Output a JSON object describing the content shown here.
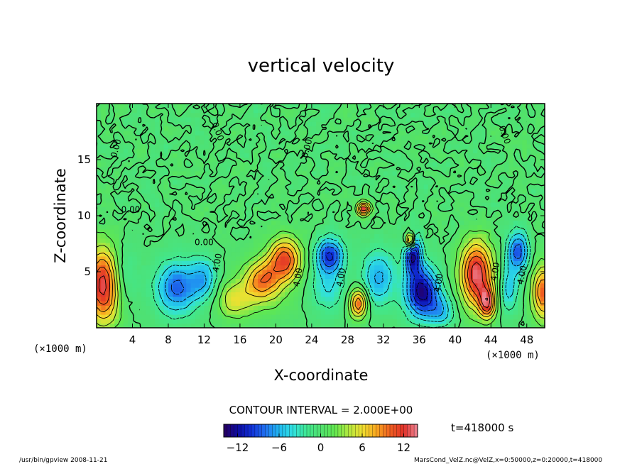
{
  "chart_data": {
    "type": "heatmap",
    "title": "vertical velocity",
    "xlabel": "X-coordinate",
    "ylabel": "Z-coordinate",
    "x_unit": "(×1000 m)",
    "y_unit": "(×1000 m)",
    "xlim": [
      0,
      50
    ],
    "ylim": [
      0,
      20
    ],
    "x_ticks": [
      4,
      8,
      12,
      16,
      20,
      24,
      28,
      32,
      36,
      40,
      44,
      48
    ],
    "y_ticks": [
      5,
      10,
      15
    ],
    "contour_interval_text": "CONTOUR INTERVAL = 2.000E+00",
    "contour_labels": [
      {
        "text": "0.00",
        "x": 2.2,
        "z": 16.0,
        "rot": -75
      },
      {
        "text": "0.00",
        "x": 13.5,
        "z": 17.5,
        "rot": 70
      },
      {
        "text": "0.00",
        "x": 23.5,
        "z": 16.0,
        "rot": -75
      },
      {
        "text": "0.00",
        "x": 45.5,
        "z": 17.2,
        "rot": 70
      },
      {
        "text": "0.00",
        "x": 3.8,
        "z": 10.5,
        "rot": 0
      },
      {
        "text": "0.00",
        "x": 12.0,
        "z": 7.6,
        "rot": 0
      },
      {
        "text": "4.00",
        "x": 13.5,
        "z": 5.8,
        "rot": -80
      },
      {
        "text": "4.00",
        "x": 22.5,
        "z": 4.5,
        "rot": -80
      },
      {
        "text": "4.00",
        "x": 27.3,
        "z": 4.5,
        "rot": -80
      },
      {
        "text": "4.00",
        "x": 38.2,
        "z": 4.0,
        "rot": -80
      },
      {
        "text": "4.00",
        "x": 44.5,
        "z": 5.0,
        "rot": -80
      },
      {
        "text": "4.00",
        "x": 47.5,
        "z": 4.7,
        "rot": -80
      }
    ],
    "features": [
      {
        "x": 0.8,
        "z": 3.8,
        "sx": 1.9,
        "sz": 3.3,
        "amp": 13.5
      },
      {
        "x": 2.8,
        "z": 4.6,
        "sx": 1.6,
        "sz": 2.6,
        "amp": -3.5
      },
      {
        "x": 9.0,
        "z": 3.6,
        "sx": 2.3,
        "sz": 2.3,
        "amp": -8.5
      },
      {
        "x": 12.0,
        "z": 4.4,
        "sx": 1.5,
        "sz": 1.9,
        "amp": -5.5
      },
      {
        "x": 15.3,
        "z": 2.4,
        "sx": 1.7,
        "sz": 1.5,
        "amp": 4.0
      },
      {
        "x": 18.5,
        "z": 4.3,
        "sx": 1.9,
        "sz": 1.7,
        "amp": 8.0
      },
      {
        "x": 21.0,
        "z": 6.1,
        "sx": 1.8,
        "sz": 1.9,
        "amp": 11.0
      },
      {
        "x": 17.5,
        "z": 3.0,
        "sx": 4.0,
        "sz": 2.2,
        "amp": 2.5
      },
      {
        "x": 26.0,
        "z": 6.5,
        "sx": 1.5,
        "sz": 1.5,
        "amp": -10.0
      },
      {
        "x": 25.8,
        "z": 3.6,
        "sx": 2.0,
        "sz": 2.2,
        "amp": -4.0
      },
      {
        "x": 29.2,
        "z": 2.2,
        "sx": 1.0,
        "sz": 1.3,
        "amp": 10.0
      },
      {
        "x": 29.8,
        "z": 10.6,
        "sx": 0.7,
        "sz": 0.6,
        "amp": 12.0
      },
      {
        "x": 31.5,
        "z": 4.5,
        "sx": 1.8,
        "sz": 2.4,
        "amp": -6.5
      },
      {
        "x": 35.3,
        "z": 6.6,
        "sx": 0.9,
        "sz": 1.8,
        "amp": -12.0
      },
      {
        "x": 36.3,
        "z": 3.2,
        "sx": 1.8,
        "sz": 2.2,
        "amp": -13.0
      },
      {
        "x": 35.0,
        "z": 7.8,
        "sx": 0.5,
        "sz": 0.7,
        "amp": 14.0
      },
      {
        "x": 42.4,
        "z": 4.8,
        "sx": 1.8,
        "sz": 2.9,
        "amp": 13.5
      },
      {
        "x": 43.6,
        "z": 2.2,
        "sx": 0.9,
        "sz": 1.4,
        "amp": 10.0
      },
      {
        "x": 47.0,
        "z": 6.8,
        "sx": 1.2,
        "sz": 1.8,
        "amp": -9.0
      },
      {
        "x": 46.0,
        "z": 3.5,
        "sx": 1.0,
        "sz": 2.0,
        "amp": -5.0
      },
      {
        "x": 49.8,
        "z": 3.2,
        "sx": 1.2,
        "sz": 2.4,
        "amp": 10.0
      },
      {
        "x": 38.5,
        "z": 1.5,
        "sx": 1.5,
        "sz": 1.4,
        "amp": -5.0
      }
    ],
    "colorbar": {
      "min": -14,
      "max": 14,
      "ticks": [
        -12,
        -6,
        0,
        6,
        12
      ],
      "tick_labels": [
        "−12",
        "−6",
        "0",
        "6",
        "12"
      ],
      "colors": [
        "#2a0060",
        "#0d0a9e",
        "#1030d8",
        "#2070f0",
        "#20b8f0",
        "#30e0e0",
        "#40e890",
        "#50e070",
        "#60e850",
        "#b0e840",
        "#f0e030",
        "#f8a820",
        "#f06020",
        "#e03028",
        "#f08898"
      ]
    }
  },
  "time_label": "t=418000 s",
  "footer_left": "/usr/bin/gpview  2008-11-21",
  "footer_right": "MarsCond_VelZ.nc@VelZ,x=0:50000,z=0:20000,t=418000"
}
